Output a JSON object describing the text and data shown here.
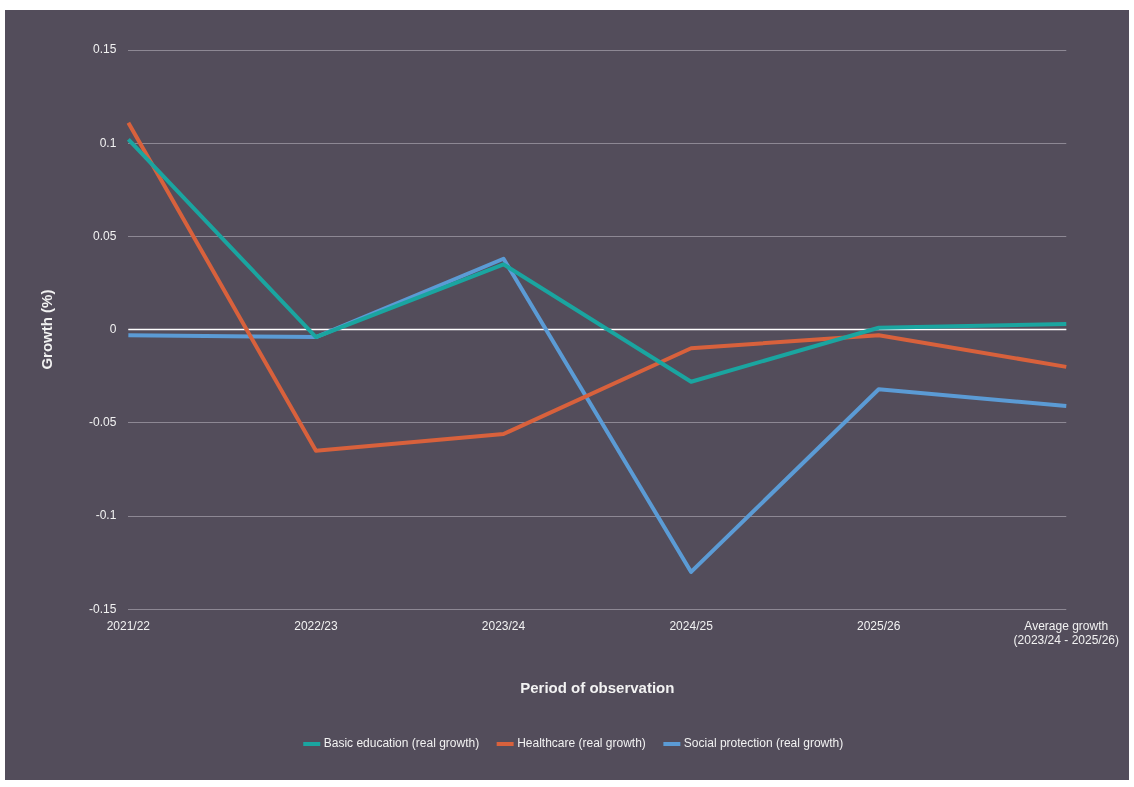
{
  "chart_data": {
    "type": "line",
    "xlabel": "Period of observation",
    "ylabel": "Growth (%)",
    "categories": [
      "2021/22",
      "2022/23",
      "2023/24",
      "2024/25",
      "2025/26",
      "Average growth\n(2023/24 - 2025/26)"
    ],
    "series": [
      {
        "name": "Basic education (real growth)",
        "color": "#1aa5a0",
        "values": [
          0.102,
          -0.004,
          0.035,
          -0.028,
          0.001,
          0.003
        ]
      },
      {
        "name": "Healthcare (real growth)",
        "color": "#d8613c",
        "values": [
          0.111,
          -0.065,
          -0.056,
          -0.01,
          -0.003,
          -0.02
        ]
      },
      {
        "name": "Social protection (real growth)",
        "color": "#5b9bd5",
        "values": [
          -0.003,
          -0.004,
          0.038,
          -0.13,
          -0.032,
          -0.041
        ]
      }
    ],
    "ylim": [
      -0.15,
      0.15
    ],
    "yticks": [
      -0.15,
      -0.1,
      -0.05,
      0,
      0.05,
      0.1,
      0.15
    ],
    "ref_lines": [
      {
        "axis": "y",
        "value": 0,
        "color": "#ffffff"
      }
    ],
    "grid": "y",
    "legend": "bottom",
    "marker": "none",
    "line_style": "solid"
  }
}
